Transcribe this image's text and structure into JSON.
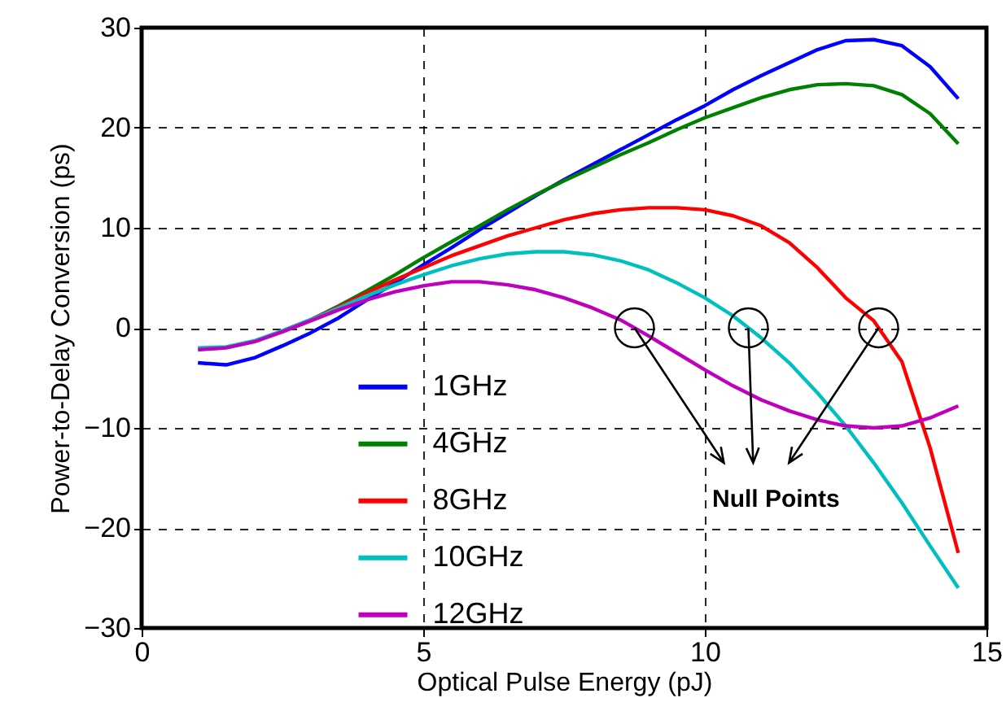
{
  "chart_data": {
    "type": "line",
    "xlabel": "Optical Pulse Energy (pJ)",
    "ylabel": "Power-to-Delay Conversion (ps)",
    "x": [
      1,
      1.5,
      2,
      2.5,
      3,
      3.5,
      4,
      4.5,
      5,
      5.5,
      6,
      6.5,
      7,
      7.5,
      8,
      8.5,
      9,
      9.5,
      10,
      10.5,
      11,
      11.5,
      12,
      12.5,
      13,
      13.5,
      14,
      14.5
    ],
    "series": [
      {
        "name": "1GHz",
        "color": "#0000ff",
        "values": [
          -3.5,
          -3.7,
          -3,
          -1.8,
          -0.5,
          1,
          2.8,
          4.5,
          6.3,
          8,
          9.8,
          11.5,
          13.2,
          14.8,
          16.3,
          17.8,
          19.3,
          20.8,
          22.2,
          23.8,
          25.2,
          26.5,
          27.8,
          28.7,
          28.8,
          28.2,
          26.1,
          22.9
        ]
      },
      {
        "name": "4GHz",
        "color": "#008000",
        "values": [
          null,
          null,
          null,
          -0.3,
          0.8,
          2.2,
          3.7,
          5.3,
          7,
          8.6,
          10.2,
          11.8,
          13.3,
          14.7,
          16,
          17.3,
          18.5,
          19.8,
          21,
          22,
          23,
          23.8,
          24.3,
          24.4,
          24.2,
          23.3,
          21.4,
          18.4
        ]
      },
      {
        "name": "8GHz",
        "color": "#ff0000",
        "values": [
          null,
          null,
          null,
          null,
          0.8,
          2.1,
          3.5,
          4.8,
          6,
          7.2,
          8.2,
          9.2,
          10,
          10.8,
          11.4,
          11.8,
          12,
          12,
          11.8,
          11.2,
          10.2,
          8.5,
          6,
          3,
          0.7,
          -3.4,
          -12,
          -22.5
        ]
      },
      {
        "name": "10GHz",
        "color": "#00bfbf",
        "values": [
          -2,
          -1.9,
          -1.3,
          -0.3,
          0.8,
          2,
          3.2,
          4.3,
          5.3,
          6.2,
          6.9,
          7.4,
          7.6,
          7.6,
          7.3,
          6.7,
          5.8,
          4.5,
          3,
          1.2,
          -1,
          -3.5,
          -6.5,
          -9.8,
          -13.5,
          -17.5,
          -21.8,
          -26
        ]
      },
      {
        "name": "12GHz",
        "color": "#bf00bf",
        "values": [
          -2.2,
          -2,
          -1.4,
          -0.4,
          0.7,
          1.8,
          2.8,
          3.6,
          4.2,
          4.6,
          4.6,
          4.3,
          3.8,
          3,
          2,
          0.8,
          -0.8,
          -2.5,
          -4.2,
          -5.8,
          -7.2,
          -8.3,
          -9.2,
          -9.8,
          -10,
          -9.8,
          -9,
          -7.8
        ]
      }
    ],
    "annotations": [
      {
        "text": "Null Points",
        "x": 10.8,
        "y": 0
      }
    ],
    "xlim": [
      0,
      15
    ],
    "xticks": [
      0,
      5,
      10,
      15
    ],
    "ylim": [
      -30,
      30
    ],
    "yticks": [
      -30,
      -20,
      -10,
      0,
      10,
      20,
      30
    ],
    "grid": true,
    "legend": "bottom left",
    "line_style": "solid",
    "marker": "none"
  }
}
